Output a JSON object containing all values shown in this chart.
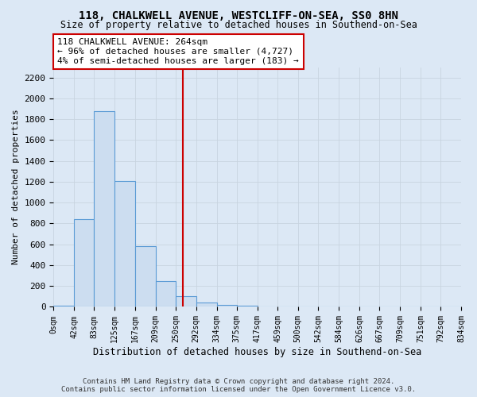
{
  "title1": "118, CHALKWELL AVENUE, WESTCLIFF-ON-SEA, SS0 8HN",
  "title2": "Size of property relative to detached houses in Southend-on-Sea",
  "xlabel": "Distribution of detached houses by size in Southend-on-Sea",
  "ylabel": "Number of detached properties",
  "footer1": "Contains HM Land Registry data © Crown copyright and database right 2024.",
  "footer2": "Contains public sector information licensed under the Open Government Licence v3.0.",
  "bin_edges": [
    0,
    42,
    83,
    125,
    167,
    209,
    250,
    292,
    334,
    375,
    417,
    459,
    500,
    542,
    584,
    626,
    667,
    709,
    751,
    792,
    834
  ],
  "bin_labels": [
    "0sqm",
    "42sqm",
    "83sqm",
    "125sqm",
    "167sqm",
    "209sqm",
    "250sqm",
    "292sqm",
    "334sqm",
    "375sqm",
    "417sqm",
    "459sqm",
    "500sqm",
    "542sqm",
    "584sqm",
    "626sqm",
    "667sqm",
    "709sqm",
    "751sqm",
    "792sqm",
    "834sqm"
  ],
  "bar_heights": [
    15,
    840,
    1880,
    1210,
    580,
    250,
    100,
    40,
    20,
    8,
    0,
    0,
    0,
    0,
    0,
    0,
    0,
    0,
    0,
    0
  ],
  "bar_color": "#ccddf0",
  "bar_edge_color": "#5b9bd5",
  "property_size": 264,
  "vline_color": "#cc0000",
  "ylim": [
    0,
    2300
  ],
  "yticks": [
    0,
    200,
    400,
    600,
    800,
    1000,
    1200,
    1400,
    1600,
    1800,
    2000,
    2200
  ],
  "annotation_text1": "118 CHALKWELL AVENUE: 264sqm",
  "annotation_text2": "← 96% of detached houses are smaller (4,727)",
  "annotation_text3": "4% of semi-detached houses are larger (183) →",
  "annotation_box_color": "#ffffff",
  "annotation_border_color": "#cc0000",
  "grid_color": "#c8d4e0",
  "bg_color": "#dce8f5"
}
